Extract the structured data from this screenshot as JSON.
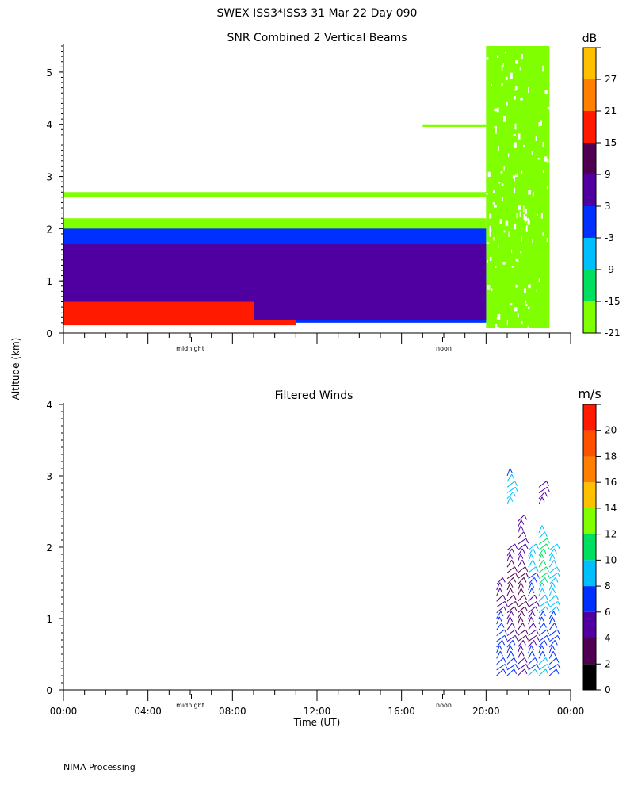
{
  "header": {
    "title": "SWEX ISS3*ISS3  31 Mar 22 Day 090",
    "ylabel": "Altitude (km)",
    "footer": "NIMA Processing"
  },
  "colors": {
    "snr_scale": [
      "#80ff00",
      "#00e060",
      "#00bfff",
      "#0030ff",
      "#5000a0",
      "#500050",
      "#ff1a00",
      "#ff8000",
      "#ffc000"
    ],
    "wind_scale": [
      "#000000",
      "#500050",
      "#5000a0",
      "#0030ff",
      "#00bfff",
      "#00e060",
      "#80ff00",
      "#ffc000",
      "#ff8000",
      "#ff5000",
      "#ff1a00"
    ]
  },
  "chart_data": [
    {
      "type": "heatmap",
      "title": "SNR Combined 2 Vertical Beams",
      "colorbar_unit": "dB",
      "colorbar_ticks": [
        "-21",
        "-15",
        "-9",
        "-3",
        "3",
        "9",
        "15",
        "21",
        "27"
      ],
      "ylim": [
        0,
        5.5
      ],
      "yticks": [
        "0",
        "1",
        "2",
        "3",
        "4",
        "5"
      ],
      "xlim": [
        "00:00",
        "24:00"
      ],
      "x_markers": [
        {
          "label": "midnight",
          "time": "06:00"
        },
        {
          "label": "noon",
          "time": "18:00"
        }
      ],
      "layers": [
        {
          "from_km": 0.15,
          "to_km": 0.25,
          "start": "00:00",
          "end": "11:00",
          "snr_db": 15
        },
        {
          "from_km": 0.25,
          "to_km": 0.6,
          "start": "00:00",
          "end": "09:00",
          "snr_db": 12
        },
        {
          "from_km": 0.25,
          "to_km": 1.7,
          "start": "00:00",
          "end": "20:00",
          "snr_db": 0
        },
        {
          "from_km": 0.2,
          "to_km": 2.0,
          "start": "00:00",
          "end": "20:00",
          "snr_db": -6
        },
        {
          "from_km": 1.8,
          "to_km": 2.2,
          "start": "00:00",
          "end": "20:00",
          "snr_db": -21
        },
        {
          "from_km": 2.6,
          "to_km": 2.7,
          "start": "00:00",
          "end": "20:00",
          "snr_db": -21
        },
        {
          "from_km": 3.95,
          "to_km": 4.0,
          "start": "17:00",
          "end": "20:00",
          "snr_db": -21
        },
        {
          "from_km": 0.1,
          "to_km": 5.5,
          "start": "20:00",
          "end": "23:00",
          "snr_db": -21
        }
      ]
    },
    {
      "type": "scatter",
      "title": "Filtered Winds",
      "colorbar_unit": "m/s",
      "colorbar_ticks": [
        "0",
        "2",
        "4",
        "6",
        "8",
        "10",
        "12",
        "14",
        "16",
        "18",
        "20"
      ],
      "ylim": [
        0,
        4
      ],
      "yticks": [
        "0",
        "1",
        "2",
        "3",
        "4"
      ],
      "xlabel": "Time (UT)",
      "xticks": [
        "00:00",
        "04:00",
        "08:00",
        "12:00",
        "16:00",
        "20:00",
        "00:00"
      ],
      "x_markers": [
        {
          "label": "midnight",
          "time": "06:00"
        },
        {
          "label": "noon",
          "time": "18:00"
        }
      ],
      "wind_profiles": [
        {
          "time": "20:30",
          "min_km": 0.2,
          "max_km": 1.5,
          "speed_ms": 6
        },
        {
          "time": "21:00",
          "min_km": 0.2,
          "max_km": 2.0,
          "speed_ms": 5
        },
        {
          "time": "21:00",
          "min_km": 2.6,
          "max_km": 3.0,
          "speed_ms": 8
        },
        {
          "time": "21:30",
          "min_km": 0.2,
          "max_km": 2.4,
          "speed_ms": 4
        },
        {
          "time": "22:00",
          "min_km": 0.2,
          "max_km": 2.0,
          "speed_ms": 7
        },
        {
          "time": "22:30",
          "min_km": 0.2,
          "max_km": 2.2,
          "speed_ms": 9
        },
        {
          "time": "22:30",
          "min_km": 2.6,
          "max_km": 2.9,
          "speed_ms": 7
        },
        {
          "time": "23:00",
          "min_km": 0.2,
          "max_km": 2.0,
          "speed_ms": 8
        }
      ]
    }
  ]
}
